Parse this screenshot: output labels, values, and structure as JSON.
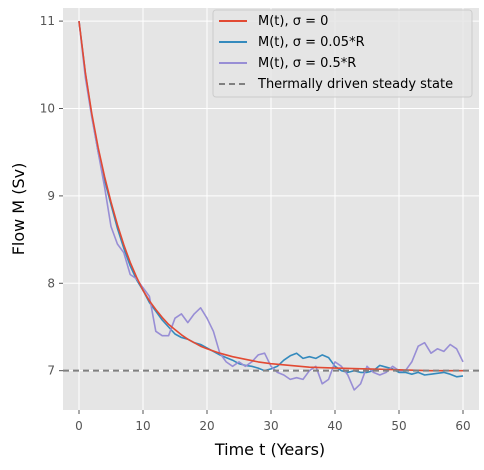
{
  "chart_data": {
    "type": "line",
    "title": "",
    "xlabel": "Time t (Years)",
    "ylabel": "Flow M (Sv)",
    "xlim": [
      -2.5,
      62.5
    ],
    "ylim": [
      6.55,
      11.15
    ],
    "xticks": [
      0,
      10,
      20,
      30,
      40,
      50,
      60
    ],
    "yticks": [
      7,
      8,
      9,
      10,
      11
    ],
    "grid": true,
    "legend_position": "top-right",
    "steady_state": {
      "name": "Thermally driven steady state",
      "value": 7.0,
      "color": "#808080"
    },
    "series": [
      {
        "name": "M(t), σ = 0",
        "color": "#E24A33",
        "x": [
          0,
          1,
          2,
          3,
          4,
          5,
          6,
          7,
          8,
          9,
          10,
          11,
          12,
          13,
          14,
          15,
          16,
          17,
          18,
          19,
          20,
          22,
          24,
          26,
          28,
          30,
          33,
          36,
          40,
          45,
          50,
          55,
          60
        ],
        "y": [
          11.0,
          10.41,
          9.94,
          9.55,
          9.22,
          8.93,
          8.67,
          8.44,
          8.24,
          8.07,
          7.92,
          7.8,
          7.7,
          7.61,
          7.53,
          7.47,
          7.41,
          7.36,
          7.32,
          7.28,
          7.25,
          7.2,
          7.16,
          7.13,
          7.1,
          7.08,
          7.06,
          7.04,
          7.03,
          7.02,
          7.01,
          7.0,
          7.0
        ]
      },
      {
        "name": "M(t), σ = 0.05*R",
        "color": "#348ABD",
        "x": [
          0,
          1,
          2,
          3,
          4,
          5,
          6,
          7,
          8,
          9,
          10,
          11,
          12,
          13,
          14,
          15,
          16,
          17,
          18,
          19,
          20,
          21,
          22,
          23,
          24,
          25,
          26,
          27,
          28,
          29,
          30,
          31,
          32,
          33,
          34,
          35,
          36,
          37,
          38,
          39,
          40,
          41,
          42,
          43,
          44,
          45,
          46,
          47,
          48,
          49,
          50,
          51,
          52,
          53,
          54,
          55,
          56,
          57,
          58,
          59,
          60
        ],
        "y": [
          11.0,
          10.4,
          9.92,
          9.5,
          9.18,
          8.9,
          8.63,
          8.4,
          8.2,
          8.04,
          7.92,
          7.78,
          7.68,
          7.58,
          7.5,
          7.42,
          7.38,
          7.36,
          7.32,
          7.3,
          7.26,
          7.22,
          7.18,
          7.15,
          7.12,
          7.08,
          7.06,
          7.05,
          7.03,
          7.0,
          7.02,
          7.05,
          7.12,
          7.17,
          7.2,
          7.14,
          7.16,
          7.14,
          7.18,
          7.15,
          7.05,
          7.0,
          6.98,
          7.0,
          6.98,
          6.98,
          7.0,
          7.06,
          7.04,
          7.02,
          6.98,
          6.98,
          6.96,
          6.98,
          6.95,
          6.96,
          6.97,
          6.98,
          6.96,
          6.93,
          6.94
        ]
      },
      {
        "name": "M(t), σ = 0.5*R",
        "color": "#988ED5",
        "x": [
          0,
          1,
          2,
          3,
          4,
          5,
          6,
          7,
          8,
          9,
          10,
          11,
          12,
          13,
          14,
          15,
          16,
          17,
          18,
          19,
          20,
          21,
          22,
          23,
          24,
          25,
          26,
          27,
          28,
          29,
          30,
          31,
          32,
          33,
          34,
          35,
          36,
          37,
          38,
          39,
          40,
          41,
          42,
          43,
          44,
          45,
          46,
          47,
          48,
          49,
          50,
          51,
          52,
          53,
          54,
          55,
          56,
          57,
          58,
          59,
          60
        ],
        "y": [
          11.0,
          10.35,
          9.9,
          9.5,
          9.1,
          8.65,
          8.45,
          8.35,
          8.1,
          8.05,
          7.95,
          7.85,
          7.45,
          7.4,
          7.4,
          7.6,
          7.65,
          7.55,
          7.65,
          7.72,
          7.6,
          7.45,
          7.2,
          7.1,
          7.05,
          7.1,
          7.05,
          7.1,
          7.18,
          7.2,
          7.05,
          6.98,
          6.95,
          6.9,
          6.92,
          6.9,
          7.0,
          7.05,
          6.85,
          6.9,
          7.1,
          7.05,
          6.95,
          6.78,
          6.85,
          7.05,
          6.98,
          6.95,
          6.98,
          7.05,
          7.0,
          7.0,
          7.1,
          7.28,
          7.32,
          7.2,
          7.25,
          7.22,
          7.3,
          7.25,
          7.1
        ]
      }
    ]
  }
}
